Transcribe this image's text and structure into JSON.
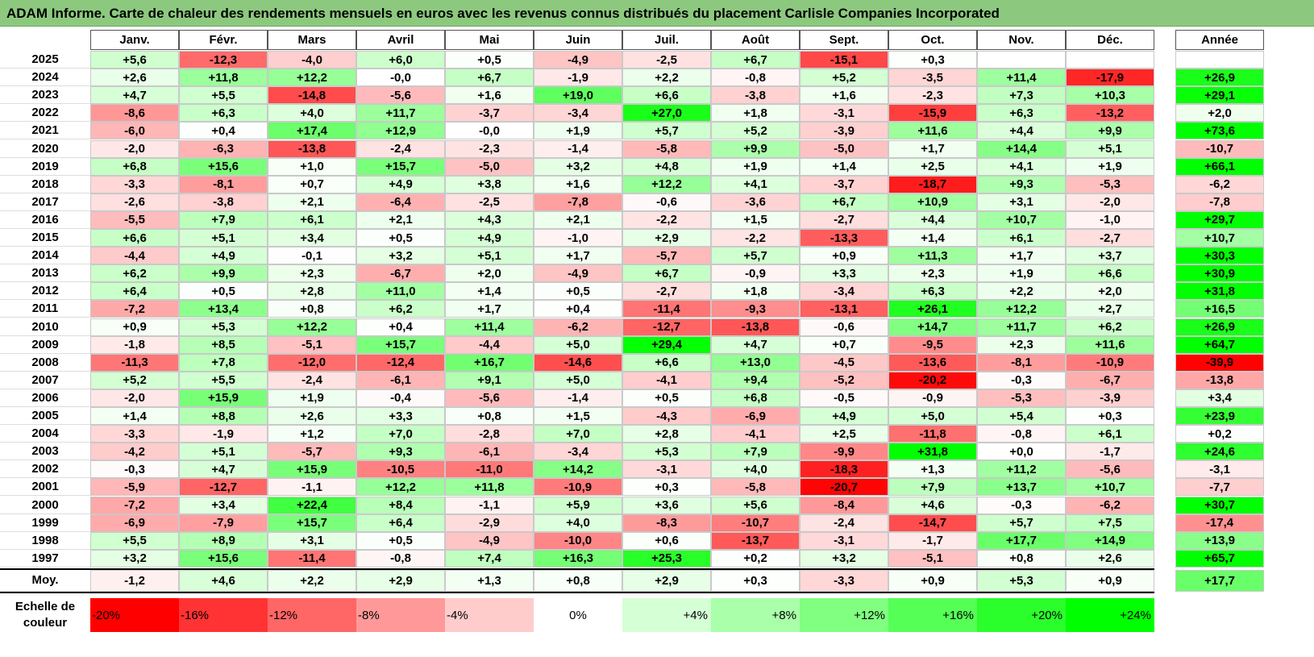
{
  "title": "ADAM Informe. Carte de chaleur des rendements mensuels en euros avec les revenus connus distribués du placement Carlisle Companies Incorporated",
  "chart_data": {
    "type": "heatmap",
    "months": [
      "Janv.",
      "Févr.",
      "Mars",
      "Avril",
      "Mai",
      "Juin",
      "Juil.",
      "Août",
      "Sept.",
      "Oct.",
      "Nov.",
      "Déc."
    ],
    "annual_header": "Année",
    "average_label": "Moy.",
    "rows": [
      {
        "year": "2025",
        "values": [
          "+5,6",
          "-12,3",
          "-4,0",
          "+6,0",
          "+0,5",
          "-4,9",
          "-2,5",
          "+6,7",
          "-15,1",
          "+0,3",
          "",
          ""
        ],
        "annual": ""
      },
      {
        "year": "2024",
        "values": [
          "+2,6",
          "+11,8",
          "+12,2",
          "-0,0",
          "+6,7",
          "-1,9",
          "+2,2",
          "-0,8",
          "+5,2",
          "-3,5",
          "+11,4",
          "-17,9"
        ],
        "annual": "+26,9"
      },
      {
        "year": "2023",
        "values": [
          "+4,7",
          "+5,5",
          "-14,8",
          "-5,6",
          "+1,6",
          "+19,0",
          "+6,6",
          "-3,8",
          "+1,6",
          "-2,3",
          "+7,3",
          "+10,3"
        ],
        "annual": "+29,1"
      },
      {
        "year": "2022",
        "values": [
          "-8,6",
          "+6,3",
          "+4,0",
          "+11,7",
          "-3,7",
          "-3,4",
          "+27,0",
          "+1,8",
          "-3,1",
          "-15,9",
          "+6,3",
          "-13,2"
        ],
        "annual": "+2,0"
      },
      {
        "year": "2021",
        "values": [
          "-6,0",
          "+0,4",
          "+17,4",
          "+12,9",
          "-0,0",
          "+1,9",
          "+5,7",
          "+5,2",
          "-3,9",
          "+11,6",
          "+4,4",
          "+9,9"
        ],
        "annual": "+73,6"
      },
      {
        "year": "2020",
        "values": [
          "-2,0",
          "-6,3",
          "-13,8",
          "-2,4",
          "-2,3",
          "-1,4",
          "-5,8",
          "+9,9",
          "-5,0",
          "+1,7",
          "+14,4",
          "+5,1"
        ],
        "annual": "-10,7"
      },
      {
        "year": "2019",
        "values": [
          "+6,8",
          "+15,6",
          "+1,0",
          "+15,7",
          "-5,0",
          "+3,2",
          "+4,8",
          "+1,9",
          "+1,4",
          "+2,5",
          "+4,1",
          "+1,9"
        ],
        "annual": "+66,1"
      },
      {
        "year": "2018",
        "values": [
          "-3,3",
          "-8,1",
          "+0,7",
          "+4,9",
          "+3,8",
          "+1,6",
          "+12,2",
          "+4,1",
          "-3,7",
          "-18,7",
          "+9,3",
          "-5,3"
        ],
        "annual": "-6,2"
      },
      {
        "year": "2017",
        "values": [
          "-2,6",
          "-3,8",
          "+2,1",
          "-6,4",
          "-2,5",
          "-7,8",
          "-0,6",
          "-3,6",
          "+6,7",
          "+10,9",
          "+3,1",
          "-2,0"
        ],
        "annual": "-7,8"
      },
      {
        "year": "2016",
        "values": [
          "-5,5",
          "+7,9",
          "+6,1",
          "+2,1",
          "+4,3",
          "+2,1",
          "-2,2",
          "+1,5",
          "-2,7",
          "+4,4",
          "+10,7",
          "-1,0"
        ],
        "annual": "+29,7"
      },
      {
        "year": "2015",
        "values": [
          "+6,6",
          "+5,1",
          "+3,4",
          "+0,5",
          "+4,9",
          "-1,0",
          "+2,9",
          "-2,2",
          "-13,3",
          "+1,4",
          "+6,1",
          "-2,7"
        ],
        "annual": "+10,7"
      },
      {
        "year": "2014",
        "values": [
          "-4,4",
          "+4,9",
          "-0,1",
          "+3,2",
          "+5,1",
          "+1,7",
          "-5,7",
          "+5,7",
          "+0,9",
          "+11,3",
          "+1,7",
          "+3,7"
        ],
        "annual": "+30,3"
      },
      {
        "year": "2013",
        "values": [
          "+6,2",
          "+9,9",
          "+2,3",
          "-6,7",
          "+2,0",
          "-4,9",
          "+6,7",
          "-0,9",
          "+3,3",
          "+2,3",
          "+1,9",
          "+6,6"
        ],
        "annual": "+30,9"
      },
      {
        "year": "2012",
        "values": [
          "+6,4",
          "+0,5",
          "+2,8",
          "+11,0",
          "+1,4",
          "+0,5",
          "-2,7",
          "+1,8",
          "-3,4",
          "+6,3",
          "+2,2",
          "+2,0"
        ],
        "annual": "+31,8"
      },
      {
        "year": "2011",
        "values": [
          "-7,2",
          "+13,4",
          "+0,8",
          "+6,2",
          "+1,7",
          "+0,4",
          "-11,4",
          "-9,3",
          "-13,1",
          "+26,1",
          "+12,2",
          "+2,7"
        ],
        "annual": "+16,5"
      },
      {
        "year": "2010",
        "values": [
          "+0,9",
          "+5,3",
          "+12,2",
          "+0,4",
          "+11,4",
          "-6,2",
          "-12,7",
          "-13,8",
          "-0,6",
          "+14,7",
          "+11,7",
          "+6,2"
        ],
        "annual": "+26,9"
      },
      {
        "year": "2009",
        "values": [
          "-1,8",
          "+8,5",
          "-5,1",
          "+15,7",
          "-4,4",
          "+5,0",
          "+29,4",
          "+4,7",
          "+0,7",
          "-9,5",
          "+2,3",
          "+11,6"
        ],
        "annual": "+64,7"
      },
      {
        "year": "2008",
        "values": [
          "-11,3",
          "+7,8",
          "-12,0",
          "-12,4",
          "+16,7",
          "-14,6",
          "+6,6",
          "+13,0",
          "-4,5",
          "-13,6",
          "-8,1",
          "-10,9"
        ],
        "annual": "-39,9"
      },
      {
        "year": "2007",
        "values": [
          "+5,2",
          "+5,5",
          "-2,4",
          "-6,1",
          "+9,1",
          "+5,0",
          "-4,1",
          "+9,4",
          "-5,2",
          "-20,2",
          "-0,3",
          "-6,7"
        ],
        "annual": "-13,8"
      },
      {
        "year": "2006",
        "values": [
          "-2,0",
          "+15,9",
          "+1,9",
          "-0,4",
          "-5,6",
          "-1,4",
          "+0,5",
          "+6,8",
          "-0,5",
          "-0,9",
          "-5,3",
          "-3,9"
        ],
        "annual": "+3,4"
      },
      {
        "year": "2005",
        "values": [
          "+1,4",
          "+8,8",
          "+2,6",
          "+3,3",
          "+0,8",
          "+1,5",
          "-4,3",
          "-6,9",
          "+4,9",
          "+5,0",
          "+5,4",
          "+0,3"
        ],
        "annual": "+23,9"
      },
      {
        "year": "2004",
        "values": [
          "-3,3",
          "-1,9",
          "+1,2",
          "+7,0",
          "-2,8",
          "+7,0",
          "+2,8",
          "-4,1",
          "+2,5",
          "-11,8",
          "-0,8",
          "+6,1"
        ],
        "annual": "+0,2"
      },
      {
        "year": "2003",
        "values": [
          "-4,2",
          "+5,1",
          "-5,7",
          "+9,3",
          "-6,1",
          "-3,4",
          "+5,3",
          "+7,9",
          "-9,9",
          "+31,8",
          "+0,0",
          "-1,7"
        ],
        "annual": "+24,6"
      },
      {
        "year": "2002",
        "values": [
          "-0,3",
          "+4,7",
          "+15,9",
          "-10,5",
          "-11,0",
          "+14,2",
          "-3,1",
          "+4,0",
          "-18,3",
          "+1,3",
          "+11,2",
          "-5,6"
        ],
        "annual": "-3,1"
      },
      {
        "year": "2001",
        "values": [
          "-5,9",
          "-12,7",
          "-1,1",
          "+12,2",
          "+11,8",
          "-10,9",
          "+0,3",
          "-5,8",
          "-20,7",
          "+7,9",
          "+13,7",
          "+10,7"
        ],
        "annual": "-7,7"
      },
      {
        "year": "2000",
        "values": [
          "-7,2",
          "+3,4",
          "+22,4",
          "+8,4",
          "-1,1",
          "+5,9",
          "+3,6",
          "+5,6",
          "-8,4",
          "+4,6",
          "-0,3",
          "-6,2"
        ],
        "annual": "+30,7"
      },
      {
        "year": "1999",
        "values": [
          "-6,9",
          "-7,9",
          "+15,7",
          "+6,4",
          "-2,9",
          "+4,0",
          "-8,3",
          "-10,7",
          "-2,4",
          "-14,7",
          "+5,7",
          "+7,5"
        ],
        "annual": "-17,4"
      },
      {
        "year": "1998",
        "values": [
          "+5,5",
          "+8,9",
          "+3,1",
          "+0,5",
          "-4,9",
          "-10,0",
          "+0,6",
          "-13,7",
          "-3,1",
          "-1,7",
          "+17,7",
          "+14,9"
        ],
        "annual": "+13,9"
      },
      {
        "year": "1997",
        "values": [
          "+3,2",
          "+15,6",
          "-11,4",
          "-0,8",
          "+7,4",
          "+16,3",
          "+25,3",
          "+0,2",
          "+3,2",
          "-5,1",
          "+0,8",
          "+2,6"
        ],
        "annual": "+65,7"
      }
    ],
    "average": {
      "values": [
        "-1,2",
        "+4,6",
        "+2,2",
        "+2,9",
        "+1,3",
        "+0,8",
        "+2,9",
        "+0,3",
        "-3,3",
        "+0,9",
        "+5,3",
        "+0,9"
      ],
      "annual": "+17,7"
    },
    "scale": {
      "label": "Echelle de couleur",
      "steps": [
        {
          "text": "-20%",
          "value": -20
        },
        {
          "text": "-16%",
          "value": -16
        },
        {
          "text": "-12%",
          "value": -12
        },
        {
          "text": "-8%",
          "value": -8
        },
        {
          "text": "-4%",
          "value": -4
        },
        {
          "text": "0%",
          "value": 0
        },
        {
          "text": "+4%",
          "value": 4
        },
        {
          "text": "+8%",
          "value": 8
        },
        {
          "text": "+12%",
          "value": 12
        },
        {
          "text": "+16%",
          "value": 16
        },
        {
          "text": "+20%",
          "value": 20
        },
        {
          "text": "+24%",
          "value": 24
        }
      ]
    },
    "colors": {
      "negative_max": "#ff0000",
      "neutral": "#ffffff",
      "positive_max": "#00ff00"
    }
  }
}
